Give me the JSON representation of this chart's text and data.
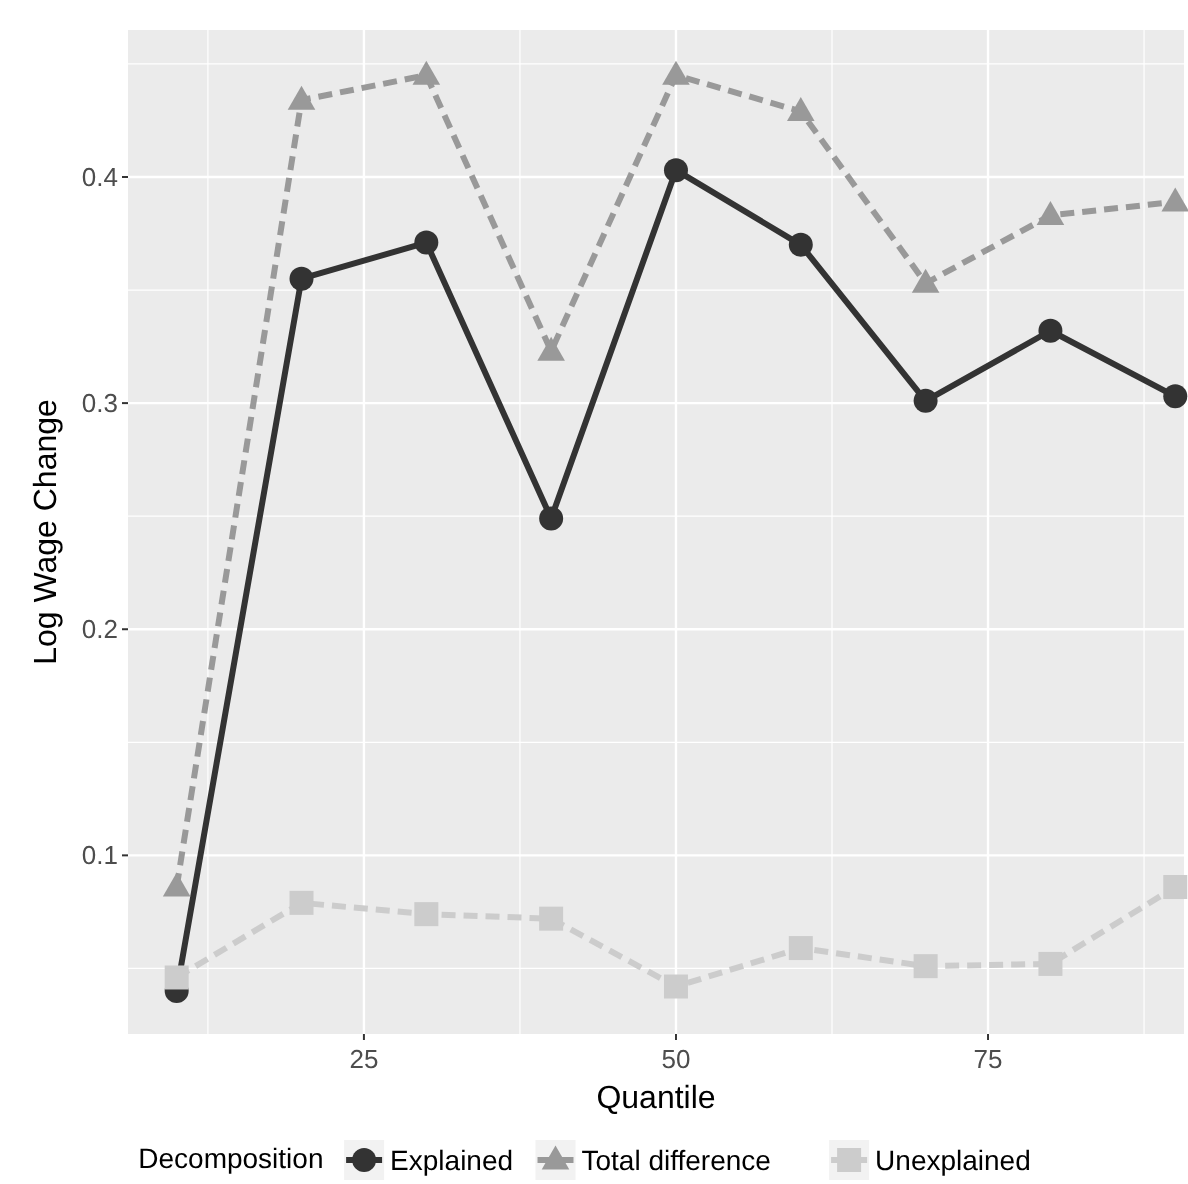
{
  "chart_data": {
    "type": "line",
    "xlabel": "Quantile",
    "ylabel": "Log Wage Change",
    "legend_title": "Decomposition",
    "legend": "bottom",
    "grid": true,
    "x": [
      10,
      20,
      30,
      40,
      50,
      60,
      70,
      80,
      90
    ],
    "xlim": [
      6.1,
      90.7
    ],
    "xticks": [
      25,
      50,
      75
    ],
    "ylim": [
      0.021,
      0.465
    ],
    "yticks": [
      0.1,
      0.2,
      0.3,
      0.4
    ],
    "series": [
      {
        "name": "Explained",
        "color": "#333333",
        "marker": "circle",
        "line_style": "solid",
        "values": [
          0.04,
          0.355,
          0.371,
          0.249,
          0.403,
          0.37,
          0.301,
          0.332,
          0.303
        ]
      },
      {
        "name": "Total difference",
        "color": "#999999",
        "marker": "triangle",
        "line_style": "dashed",
        "values": [
          0.086,
          0.434,
          0.445,
          0.323,
          0.445,
          0.429,
          0.353,
          0.383,
          0.389
        ]
      },
      {
        "name": "Unexplained",
        "color": "#cccccc",
        "marker": "square",
        "line_style": "dashed",
        "values": [
          0.046,
          0.079,
          0.074,
          0.072,
          0.042,
          0.059,
          0.051,
          0.052,
          0.086
        ]
      }
    ]
  }
}
